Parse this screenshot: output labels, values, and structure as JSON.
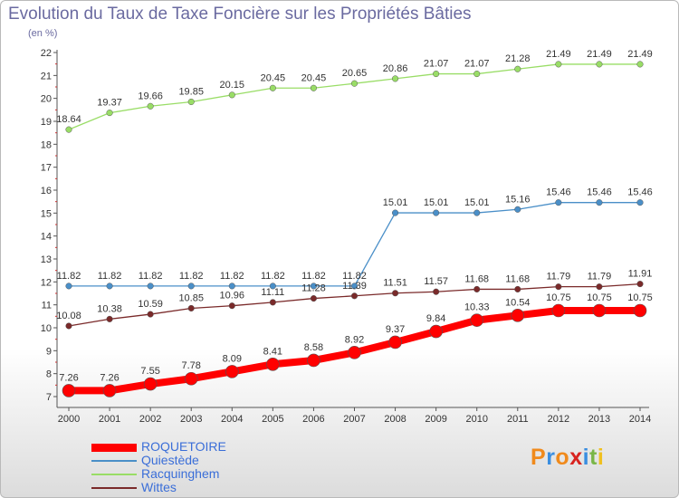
{
  "title": "Evolution du Taux de Taxe Foncière sur les Propriétés Bâties",
  "subtitle": "(en %)",
  "logo": {
    "text": "Proxiti",
    "letter_colors": [
      "#f08a1c",
      "#3a8ee0",
      "#f08a1c",
      "#d8231f",
      "#3a8ee0",
      "#7ab648",
      "#f0c020"
    ]
  },
  "chart_data": {
    "type": "line",
    "x": [
      2000,
      2001,
      2002,
      2003,
      2004,
      2005,
      2006,
      2007,
      2008,
      2009,
      2010,
      2011,
      2012,
      2013,
      2014
    ],
    "ylim": [
      7,
      22
    ],
    "yticks": [
      7,
      8,
      9,
      10,
      11,
      12,
      13,
      14,
      15,
      16,
      17,
      18,
      19,
      20,
      21,
      22
    ],
    "grid": false,
    "legend_position": "bottom-left",
    "series": [
      {
        "name": "ROQUETOIRE",
        "color": "#ff0000",
        "values": [
          7.26,
          7.26,
          7.55,
          7.78,
          8.09,
          8.41,
          8.58,
          8.92,
          9.37,
          9.84,
          10.33,
          10.54,
          10.75,
          10.75,
          10.75
        ],
        "labels": [
          "7.26",
          "7.26",
          "7.55",
          "7.78",
          "8.09",
          "8.41",
          "8.58",
          "8.92",
          "9.37",
          "9.84",
          "10.33",
          "10.54",
          "10.75",
          "10.75",
          "10.75"
        ]
      },
      {
        "name": "Quiestède",
        "color": "#4a8fc8",
        "values": [
          11.82,
          11.82,
          11.82,
          11.82,
          11.82,
          11.82,
          11.82,
          11.82,
          15.01,
          15.01,
          15.01,
          15.16,
          15.46,
          15.46,
          15.46
        ],
        "labels": [
          "11.82",
          "11.82",
          "11.82",
          "11.82",
          "11.82",
          "11.82",
          "11.82",
          "11.82",
          "15.01",
          "15.01",
          "15.01",
          "15.16",
          "15.46",
          "15.46",
          "15.46"
        ]
      },
      {
        "name": "Racquinghem",
        "color": "#99dd66",
        "values": [
          18.64,
          19.37,
          19.66,
          19.85,
          20.15,
          20.45,
          20.45,
          20.65,
          20.86,
          21.07,
          21.07,
          21.28,
          21.49,
          21.49,
          21.49
        ],
        "labels": [
          "18.64",
          "19.37",
          "19.66",
          "19.85",
          "20.15",
          "20.45",
          "20.45",
          "20.65",
          "20.86",
          "21.07",
          "21.07",
          "21.28",
          "21.49",
          "21.49",
          "21.49"
        ]
      },
      {
        "name": "Wittes",
        "color": "#7a2a2a",
        "values": [
          10.08,
          10.38,
          10.59,
          10.85,
          10.96,
          11.11,
          11.28,
          11.39,
          11.51,
          11.57,
          11.68,
          11.68,
          11.79,
          11.79,
          11.91
        ],
        "labels": [
          "10.08",
          "10.38",
          "10.59",
          "10.85",
          "10.96",
          "11.11",
          "11.28",
          "11.39",
          "11.51",
          "11.57",
          "11.68",
          "11.68",
          "11.79",
          "11.79",
          "11.91"
        ]
      }
    ]
  }
}
